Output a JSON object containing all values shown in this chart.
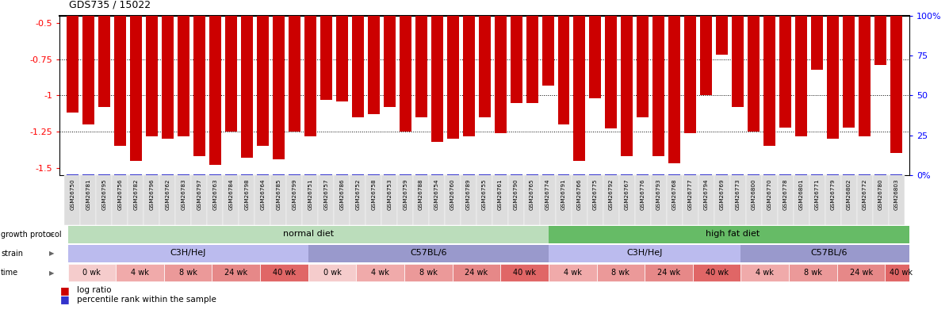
{
  "title": "GDS735 / 15022",
  "sample_ids": [
    "GSM26750",
    "GSM26781",
    "GSM26795",
    "GSM26756",
    "GSM26782",
    "GSM26796",
    "GSM26762",
    "GSM26783",
    "GSM26797",
    "GSM26763",
    "GSM26784",
    "GSM26798",
    "GSM26764",
    "GSM26785",
    "GSM26799",
    "GSM26751",
    "GSM26757",
    "GSM26786",
    "GSM26752",
    "GSM26758",
    "GSM26753",
    "GSM26759",
    "GSM26788",
    "GSM26754",
    "GSM26760",
    "GSM26789",
    "GSM26755",
    "GSM26761",
    "GSM26790",
    "GSM26765",
    "GSM26774",
    "GSM26791",
    "GSM26766",
    "GSM26775",
    "GSM26792",
    "GSM26767",
    "GSM26776",
    "GSM26793",
    "GSM26768",
    "GSM26777",
    "GSM26794",
    "GSM26769",
    "GSM26773",
    "GSM26800",
    "GSM26770",
    "GSM26778",
    "GSM26801",
    "GSM26771",
    "GSM26779",
    "GSM26802",
    "GSM26772",
    "GSM26780",
    "GSM26803"
  ],
  "log_ratios": [
    -1.12,
    -1.2,
    -1.08,
    -1.35,
    -1.45,
    -1.28,
    -1.3,
    -1.28,
    -1.42,
    -1.48,
    -1.25,
    -1.43,
    -1.35,
    -1.44,
    -1.25,
    -1.28,
    -1.03,
    -1.04,
    -1.15,
    -1.13,
    -1.08,
    -1.25,
    -1.15,
    -1.32,
    -1.3,
    -1.28,
    -1.15,
    -1.26,
    -1.05,
    -1.05,
    -0.93,
    -1.2,
    -1.45,
    -1.02,
    -1.23,
    -1.42,
    -1.15,
    -1.42,
    -1.47,
    -1.26,
    -1.0,
    -0.72,
    -1.08,
    -1.25,
    -1.35,
    -1.22,
    -1.28,
    -0.82,
    -1.3,
    -1.22,
    -1.28,
    -0.79,
    -1.4
  ],
  "percentile_ranks": [
    2,
    2,
    2,
    2,
    2,
    2,
    2,
    2,
    2,
    2,
    2,
    2,
    2,
    2,
    2,
    2,
    2,
    2,
    2,
    2,
    2,
    2,
    2,
    2,
    2,
    2,
    2,
    2,
    2,
    2,
    2,
    2,
    2,
    2,
    2,
    2,
    2,
    2,
    2,
    2,
    2,
    2,
    2,
    2,
    2,
    2,
    3,
    2,
    2,
    2,
    2,
    3,
    2
  ],
  "bar_color": "#cc0000",
  "percentile_color": "#3333cc",
  "ylim_left": [
    -1.55,
    -0.45
  ],
  "ylim_right": [
    0,
    100
  ],
  "yticks_left": [
    -1.5,
    -1.25,
    -1.0,
    -0.75,
    -0.5
  ],
  "yticks_right": [
    0,
    25,
    50,
    75,
    100
  ],
  "ytick_labels_left": [
    "-1.5",
    "-1.25",
    "-1",
    "-0.75",
    "-0.5"
  ],
  "ytick_labels_right": [
    "0%",
    "25",
    "50",
    "75",
    "100%"
  ],
  "grid_lines": [
    -0.75,
    -1.0,
    -1.25
  ],
  "bg_color": "#ffffff",
  "time_colors": {
    "0 wk": "#f5cccc",
    "4 wk": "#f0aaaa",
    "8 wk": "#eb9999",
    "24 wk": "#e68888",
    "40 wk": "#e06666"
  },
  "time_blocks": [
    {
      "label": "0 wk",
      "start": 0,
      "end": 3
    },
    {
      "label": "4 wk",
      "start": 3,
      "end": 6
    },
    {
      "label": "8 wk",
      "start": 6,
      "end": 9
    },
    {
      "label": "24 wk",
      "start": 9,
      "end": 12
    },
    {
      "label": "40 wk",
      "start": 12,
      "end": 15
    },
    {
      "label": "0 wk",
      "start": 15,
      "end": 18
    },
    {
      "label": "4 wk",
      "start": 18,
      "end": 21
    },
    {
      "label": "8 wk",
      "start": 21,
      "end": 24
    },
    {
      "label": "24 wk",
      "start": 24,
      "end": 27
    },
    {
      "label": "40 wk",
      "start": 27,
      "end": 30
    },
    {
      "label": "4 wk",
      "start": 30,
      "end": 33
    },
    {
      "label": "8 wk",
      "start": 33,
      "end": 36
    },
    {
      "label": "24 wk",
      "start": 36,
      "end": 39
    },
    {
      "label": "40 wk",
      "start": 39,
      "end": 42
    },
    {
      "label": "4 wk",
      "start": 42,
      "end": 45
    },
    {
      "label": "8 wk",
      "start": 45,
      "end": 48
    },
    {
      "label": "24 wk",
      "start": 48,
      "end": 51
    },
    {
      "label": "40 wk",
      "start": 51,
      "end": 53
    }
  ],
  "strain_blocks": [
    {
      "label": "C3H/HeJ",
      "start": 0,
      "end": 15,
      "color": "#bbbbee"
    },
    {
      "label": "C57BL/6",
      "start": 15,
      "end": 30,
      "color": "#9999cc"
    },
    {
      "label": "C3H/HeJ",
      "start": 30,
      "end": 42,
      "color": "#bbbbee"
    },
    {
      "label": "C57BL/6",
      "start": 42,
      "end": 53,
      "color": "#9999cc"
    }
  ],
  "diet_blocks": [
    {
      "label": "normal diet",
      "start": 0,
      "end": 30,
      "color": "#bbddbb"
    },
    {
      "label": "high fat diet",
      "start": 30,
      "end": 53,
      "color": "#66bb66"
    }
  ],
  "growth_protocol_label": "growth protocol",
  "strain_label": "strain",
  "time_label": "time"
}
